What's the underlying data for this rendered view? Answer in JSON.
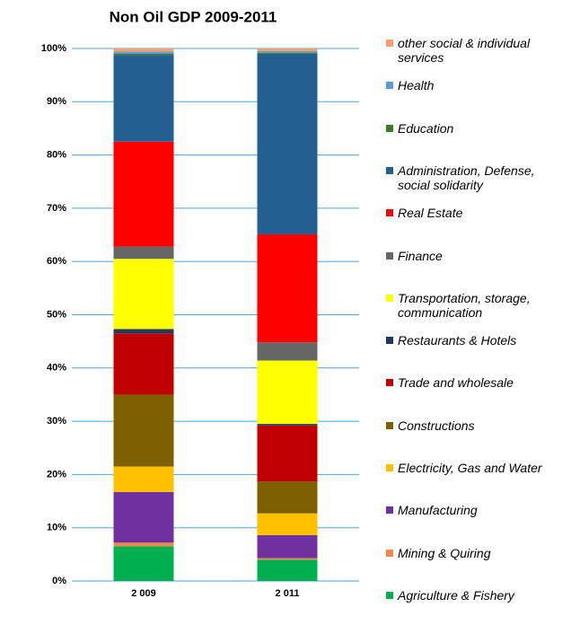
{
  "chart_data": {
    "type": "stacked_bar",
    "title": "Non Oil GDP 2009-2011",
    "categories": [
      "2 009",
      "2 011"
    ],
    "ylim": [
      0,
      100
    ],
    "yticks": [
      {
        "value": 0,
        "label": "0%"
      },
      {
        "value": 10,
        "label": "10%"
      },
      {
        "value": 20,
        "label": "20%"
      },
      {
        "value": 30,
        "label": "30%"
      },
      {
        "value": 40,
        "label": "40%"
      },
      {
        "value": 50,
        "label": "50%"
      },
      {
        "value": 60,
        "label": "60%"
      },
      {
        "value": 70,
        "label": "70%"
      },
      {
        "value": 80,
        "label": "80%"
      },
      {
        "value": 90,
        "label": "90%"
      },
      {
        "value": 100,
        "label": "100%"
      }
    ],
    "grid": true,
    "series": [
      {
        "name": "Agriculture & Fishery",
        "color": "#00b050",
        "values": [
          6.5,
          4.0
        ]
      },
      {
        "name": "Mining & Quiring",
        "color": "#f08a4b",
        "values": [
          0.7,
          0.3
        ]
      },
      {
        "name": "Manufacturing",
        "color": "#7030a0",
        "values": [
          9.5,
          4.3
        ]
      },
      {
        "name": "Electricity, Gas and Water",
        "color": "#ffc000",
        "values": [
          4.8,
          4.1
        ]
      },
      {
        "name": "Constructions",
        "color": "#7f6000",
        "values": [
          13.5,
          6.0
        ]
      },
      {
        "name": "Trade and wholesale",
        "color": "#c00000",
        "values": [
          11.5,
          10.5
        ]
      },
      {
        "name": "Restaurants & Hotels",
        "color": "#1f3864",
        "values": [
          0.8,
          0.3
        ]
      },
      {
        "name": "Transportation, storage, communication",
        "color": "#ffff00",
        "values": [
          13.2,
          11.9
        ]
      },
      {
        "name": "Finance",
        "color": "#666666",
        "values": [
          2.3,
          3.4
        ]
      },
      {
        "name": "Real Estate",
        "color": "#ff0000",
        "values": [
          19.7,
          20.3
        ]
      },
      {
        "name": "Administration, Defense, social solidarity",
        "color": "#245f91",
        "values": [
          16.3,
          33.9
        ]
      },
      {
        "name": "Education",
        "color": "#3a7d22",
        "values": [
          0.2,
          0.2
        ]
      },
      {
        "name": "Health",
        "color": "#5b9bd5",
        "values": [
          0.4,
          0.3
        ]
      },
      {
        "name": "other social & individual services",
        "color": "#f4a070",
        "values": [
          0.6,
          0.5
        ]
      }
    ]
  }
}
